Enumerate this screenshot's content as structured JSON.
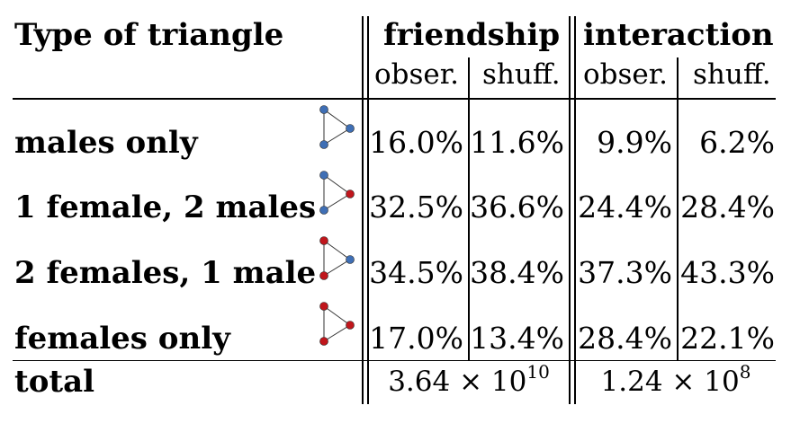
{
  "header": {
    "type_col": "Type of triangle",
    "groups": [
      "friendship",
      "interaction"
    ],
    "sub": [
      "obser.",
      "shuff.",
      "obser.",
      "shuff."
    ]
  },
  "rows": [
    {
      "label": "males only",
      "values": [
        "16.0%",
        "11.6%",
        "9.9%",
        "6.2%"
      ],
      "triangle": {
        "top": "#3f6fb5",
        "right": "#3f6fb5",
        "bottom": "#3f6fb5"
      }
    },
    {
      "label": "1 female, 2 males",
      "values": [
        "32.5%",
        "36.6%",
        "24.4%",
        "28.4%"
      ],
      "triangle": {
        "top": "#3f6fb5",
        "right": "#c0161c",
        "bottom": "#3f6fb5"
      }
    },
    {
      "label": "2 females, 1 male",
      "values": [
        "34.5%",
        "38.4%",
        "37.3%",
        "43.3%"
      ],
      "triangle": {
        "top": "#c0161c",
        "right": "#3f6fb5",
        "bottom": "#c0161c"
      }
    },
    {
      "label": "females only",
      "values": [
        "17.0%",
        "13.4%",
        "28.4%",
        "22.1%"
      ],
      "triangle": {
        "top": "#c0161c",
        "right": "#c0161c",
        "bottom": "#c0161c"
      }
    }
  ],
  "total": {
    "label": "total",
    "friendship": {
      "mantissa": "3.64 × 10",
      "exponent": "10"
    },
    "interaction": {
      "mantissa": "1.24 × 10",
      "exponent": "8"
    }
  }
}
